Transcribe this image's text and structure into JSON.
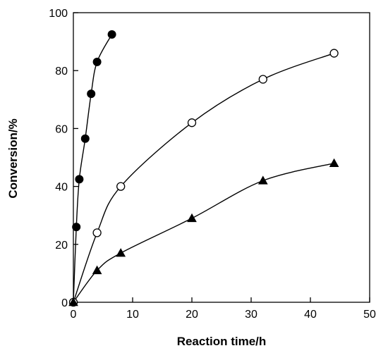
{
  "chart_data": {
    "type": "scatter",
    "title": "",
    "xlabel": "Reaction time/h",
    "ylabel": "Conversion/%",
    "xlim": [
      0,
      50
    ],
    "ylim": [
      0,
      100
    ],
    "xticks": [
      0,
      10,
      20,
      30,
      40,
      50
    ],
    "yticks": [
      0,
      20,
      40,
      60,
      80,
      100
    ],
    "grid": false,
    "legend": "none",
    "series": [
      {
        "marker": "filled-circle",
        "color": "#000000",
        "x": [
          0,
          0.5,
          1,
          2,
          3,
          4,
          6.5
        ],
        "y": [
          0,
          26,
          42.5,
          56.5,
          72,
          83,
          92.5
        ]
      },
      {
        "marker": "open-circle",
        "color": "#000000",
        "x": [
          0,
          4,
          8,
          20,
          32,
          44
        ],
        "y": [
          0,
          24,
          40,
          62,
          77,
          86
        ]
      },
      {
        "marker": "filled-triangle",
        "color": "#000000",
        "x": [
          0,
          4,
          8,
          20,
          32,
          44
        ],
        "y": [
          0,
          11,
          17,
          29,
          42,
          48
        ]
      }
    ]
  }
}
